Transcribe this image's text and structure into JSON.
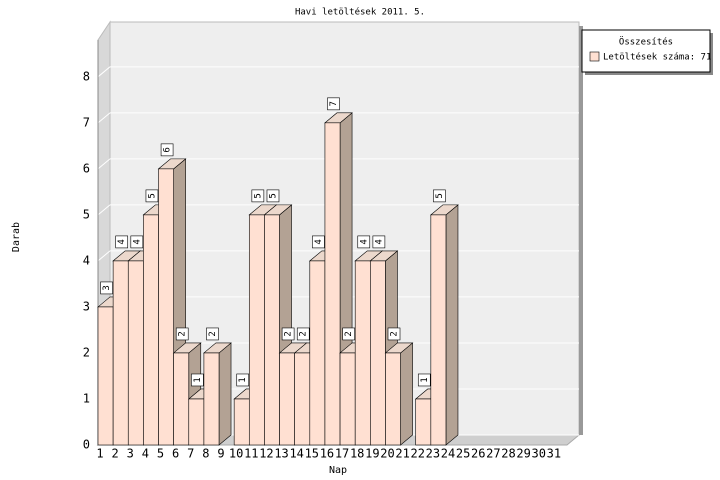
{
  "chart_data": {
    "type": "bar3d",
    "title": "Havi letöltések 2011. 5.",
    "x_label": "Nap",
    "y_label": "Darab",
    "categories": [
      "1",
      "2",
      "3",
      "4",
      "5",
      "6",
      "7",
      "8",
      "9",
      "10",
      "11",
      "12",
      "13",
      "14",
      "15",
      "16",
      "17",
      "18",
      "19",
      "20",
      "21",
      "22",
      "23",
      "24",
      "25",
      "26",
      "27",
      "28",
      "29",
      "30",
      "31"
    ],
    "series": [
      {
        "name": "Letöltések száma: 71",
        "color": "#ffe0d2",
        "values": [
          3,
          4,
          4,
          5,
          6,
          2,
          1,
          2,
          0,
          1,
          5,
          5,
          2,
          2,
          4,
          7,
          2,
          4,
          4,
          2,
          0,
          1,
          5,
          0,
          0,
          0,
          0,
          0,
          0,
          0,
          0
        ]
      }
    ],
    "legend_title": "Összesítés",
    "legend": "top-right",
    "ylim": [
      0,
      8.8
    ],
    "yticks": [
      0,
      1,
      2,
      3,
      4,
      5,
      6,
      7,
      8
    ],
    "grid": true
  }
}
